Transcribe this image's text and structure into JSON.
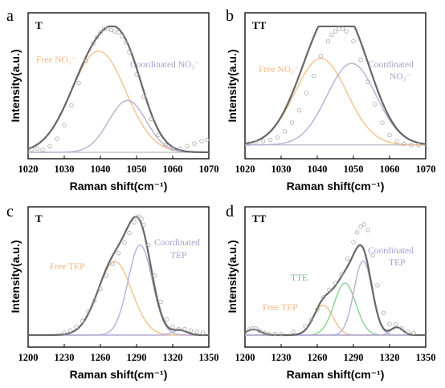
{
  "chart_data": [
    {
      "id": "a",
      "type": "line",
      "panel_label": "a",
      "sample": "T",
      "xlabel": "Raman shift(cm⁻¹)",
      "ylabel": "Intensity(a.u.)",
      "xlim": [
        1020,
        1070
      ],
      "ylim": [
        0,
        1.0
      ],
      "xticks": [
        1020,
        1030,
        1040,
        1050,
        1060,
        1070
      ],
      "baseline": 0.0,
      "fit": [
        {
          "name": "Free NO₃⁻",
          "center": 1039.5,
          "height": 0.82,
          "width": 7.5,
          "color": "#f5c08c"
        },
        {
          "name": "Coordinated NO₃⁻",
          "center": 1047.5,
          "height": 0.42,
          "width": 5.2,
          "color": "#b8aed6"
        }
      ],
      "annotations": [
        {
          "key": "free",
          "text": "Free NO₃⁻",
          "color": "#f5b583"
        },
        {
          "key": "coord",
          "text": "Coordinated NO₃⁻",
          "color": "#a99fd0"
        }
      ],
      "experimental_x": [
        1021,
        1022.5,
        1024,
        1026,
        1028,
        1030,
        1032,
        1034,
        1036,
        1038,
        1039,
        1040,
        1041,
        1042,
        1043,
        1044,
        1045,
        1046,
        1047,
        1048,
        1050,
        1052,
        1054,
        1056,
        1058,
        1060,
        1062,
        1064,
        1066,
        1068,
        1069.5
      ],
      "experimental_y": [
        0.02,
        0.03,
        0.02,
        0.05,
        0.11,
        0.22,
        0.38,
        0.56,
        0.74,
        0.88,
        0.93,
        0.97,
        1.0,
        1.0,
        0.99,
        0.98,
        0.97,
        0.94,
        0.89,
        0.81,
        0.63,
        0.45,
        0.27,
        0.14,
        0.06,
        0.03,
        0.03,
        0.05,
        0.07,
        0.09,
        0.1
      ]
    },
    {
      "id": "b",
      "type": "line",
      "panel_label": "b",
      "sample": "TT",
      "xlabel": "Raman shift(cm⁻¹)",
      "ylabel": "Intensity(a.u.)",
      "xlim": [
        1020,
        1070
      ],
      "ylim": [
        0,
        1.0
      ],
      "xticks": [
        1020,
        1030,
        1040,
        1050,
        1060,
        1070
      ],
      "baseline": 0.06,
      "fit": [
        {
          "name": "Free NO₃⁻",
          "center": 1041,
          "height": 0.7,
          "width": 7.2,
          "color": "#f5c08c"
        },
        {
          "name": "Coordinated NO₃⁻",
          "center": 1049.5,
          "height": 0.66,
          "width": 6.8,
          "color": "#b8aed6"
        }
      ],
      "annotations": [
        {
          "key": "free",
          "text": "Free NO₃⁻",
          "color": "#f5b583"
        },
        {
          "key": "coord",
          "text": "Coordinated",
          "color": "#a99fd0"
        },
        {
          "key": "coord2",
          "text": "NO₃⁻",
          "color": "#a99fd0"
        }
      ],
      "experimental_x": [
        1021,
        1023,
        1025,
        1027,
        1029,
        1031,
        1033,
        1035,
        1037,
        1039,
        1041,
        1043,
        1044,
        1045,
        1046,
        1047,
        1048,
        1050,
        1052,
        1054,
        1056,
        1058,
        1060,
        1062,
        1064,
        1066,
        1068
      ],
      "experimental_y": [
        0.07,
        0.08,
        0.09,
        0.1,
        0.12,
        0.17,
        0.24,
        0.34,
        0.48,
        0.62,
        0.78,
        0.9,
        0.95,
        0.98,
        1.0,
        1.0,
        0.98,
        0.9,
        0.75,
        0.57,
        0.39,
        0.24,
        0.14,
        0.09,
        0.07,
        0.06,
        0.06
      ]
    },
    {
      "id": "c",
      "type": "line",
      "panel_label": "c",
      "sample": "T",
      "xlabel": "Raman shift(cm⁻¹)",
      "ylabel": "Intensity(a.u.)",
      "xlim": [
        1200,
        1350
      ],
      "ylim": [
        0,
        1.0
      ],
      "xticks": [
        1200,
        1230,
        1260,
        1290,
        1320,
        1350
      ],
      "baseline": 0.0,
      "fit": [
        {
          "name": "Free TEP",
          "center": 1272,
          "height": 0.62,
          "width": 14,
          "color": "#f5c08c"
        },
        {
          "name": "Coordinated TEP",
          "center": 1293,
          "height": 0.76,
          "width": 10,
          "color": "#b8aed6"
        },
        {
          "name": "",
          "center": 1326,
          "height": 0.04,
          "width": 6,
          "color": "#b8aed6"
        }
      ],
      "annotations": [
        {
          "key": "free",
          "text": "Free TEP",
          "color": "#f5b583"
        },
        {
          "key": "coord",
          "text": "Coordinated",
          "color": "#a99fd0"
        },
        {
          "key": "coord2",
          "text": "TEP",
          "color": "#a99fd0"
        }
      ],
      "experimental_x": [
        1230,
        1235,
        1240,
        1245,
        1250,
        1255,
        1260,
        1265,
        1270,
        1275,
        1280,
        1284,
        1288,
        1290,
        1292,
        1294,
        1296,
        1300,
        1305,
        1310,
        1315,
        1320,
        1325,
        1330,
        1335,
        1340,
        1345
      ],
      "experimental_y": [
        0.02,
        0.04,
        0.07,
        0.12,
        0.2,
        0.29,
        0.39,
        0.5,
        0.6,
        0.69,
        0.78,
        0.86,
        0.95,
        0.99,
        1.0,
        0.98,
        0.93,
        0.76,
        0.5,
        0.28,
        0.13,
        0.07,
        0.05,
        0.05,
        0.04,
        0.03,
        0.02
      ]
    },
    {
      "id": "d",
      "type": "line",
      "panel_label": "d",
      "sample": "TT",
      "xlabel": "Raman shift(cm⁻¹)",
      "ylabel": "Intensity(a.u.)",
      "xlim": [
        1200,
        1350
      ],
      "ylim": [
        0,
        1.0
      ],
      "xticks": [
        1200,
        1230,
        1260,
        1290,
        1320,
        1350
      ],
      "baseline": 0.0,
      "fit": [
        {
          "name": "Free TEP",
          "center": 1265,
          "height": 0.27,
          "width": 8,
          "color": "#f5c08c"
        },
        {
          "name": "TTE",
          "center": 1283,
          "height": 0.47,
          "width": 9,
          "color": "#86d28c"
        },
        {
          "name": "Coordinated TEP",
          "center": 1298,
          "height": 0.67,
          "width": 7.5,
          "color": "#b8aed6"
        },
        {
          "name": "",
          "center": 1326,
          "height": 0.07,
          "width": 5,
          "color": "#b8aed6"
        },
        {
          "name": "",
          "center": 1207,
          "height": 0.05,
          "width": 6,
          "color": "#b8aed6"
        }
      ],
      "annotations": [
        {
          "key": "free",
          "text": "Free TEP",
          "color": "#f5b583"
        },
        {
          "key": "tte",
          "text": "TTE",
          "color": "#6cc876"
        },
        {
          "key": "coord",
          "text": "Coordinated",
          "color": "#a99fd0"
        },
        {
          "key": "coord2",
          "text": "TEP",
          "color": "#a99fd0"
        }
      ],
      "experimental_x": [
        1203,
        1206,
        1209,
        1212,
        1216,
        1220,
        1225,
        1230,
        1240,
        1250,
        1255,
        1260,
        1265,
        1270,
        1275,
        1280,
        1285,
        1290,
        1293,
        1296,
        1299,
        1302,
        1306,
        1310,
        1315,
        1320,
        1325,
        1330,
        1335,
        1340
      ],
      "experimental_y": [
        0.05,
        0.06,
        0.06,
        0.04,
        0.02,
        0.01,
        0.01,
        0.01,
        0.03,
        0.08,
        0.14,
        0.23,
        0.34,
        0.41,
        0.47,
        0.55,
        0.69,
        0.84,
        0.93,
        0.98,
        1.0,
        0.95,
        0.72,
        0.45,
        0.2,
        0.1,
        0.1,
        0.06,
        0.03,
        0.02
      ]
    }
  ]
}
